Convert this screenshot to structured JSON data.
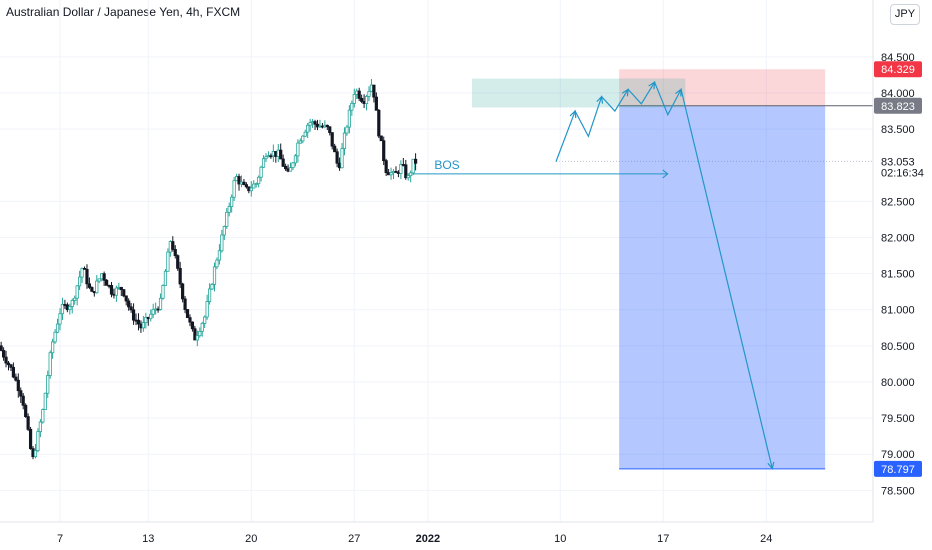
{
  "header": {
    "title": "Australian Dollar / Japanese Yen, 4h, FXCM",
    "currency_button": "JPY"
  },
  "colors": {
    "up": "#26a69a",
    "down": "#131722",
    "target_zone": "#2962ff",
    "stop_zone": "#f23645",
    "supply_zone": "#26a69a",
    "annotation": "#2196c9",
    "entry_label_bg": "#787b86",
    "target_label_bg": "#2962ff",
    "stop_label_bg": "#f23645"
  },
  "chart_data": {
    "type": "candlestick",
    "yrange": [
      78.2,
      84.9
    ],
    "y_ticks": [
      "84.500",
      "84.000",
      "83.500",
      "83.053",
      "82.500",
      "82.000",
      "81.500",
      "81.000",
      "80.500",
      "80.000",
      "79.500",
      "79.000",
      "78.500"
    ],
    "x_ticks": [
      "7",
      "13",
      "20",
      "27",
      "2022",
      "10",
      "17",
      "24"
    ],
    "last_price": "83.053",
    "countdown": "02:16:34",
    "price_labels": {
      "stop": "84.329",
      "entry": "83.823",
      "target": "78.797"
    },
    "annotation_text": "BOS",
    "bos_level": 82.88,
    "supply_zone": {
      "from": "Jan 4",
      "to": "Jan 18",
      "low": 83.8,
      "high": 84.2
    },
    "short_position": {
      "from": "Jan 14",
      "to": "Jan 28",
      "entry": 83.823,
      "stop": 84.329,
      "target": 78.797
    },
    "projected_path": [
      {
        "d": 9.3,
        "p": 83.05
      },
      {
        "d": 10.6,
        "p": 83.75
      },
      {
        "d": 11.5,
        "p": 83.4
      },
      {
        "d": 12.4,
        "p": 83.95
      },
      {
        "d": 13.3,
        "p": 83.75
      },
      {
        "d": 14.2,
        "p": 84.05
      },
      {
        "d": 15.1,
        "p": 83.85
      },
      {
        "d": 16.0,
        "p": 84.15
      },
      {
        "d": 16.9,
        "p": 83.7
      },
      {
        "d": 17.8,
        "p": 84.05
      },
      {
        "d": 24.0,
        "p": 78.8
      }
    ],
    "price_path": [
      {
        "d": 0.0,
        "p": 80.5
      },
      {
        "d": 0.8,
        "p": 80.2
      },
      {
        "d": 1.6,
        "p": 79.8
      },
      {
        "d": 2.3,
        "p": 78.9
      },
      {
        "d": 3.0,
        "p": 79.6
      },
      {
        "d": 3.6,
        "p": 80.5
      },
      {
        "d": 4.2,
        "p": 81.0
      },
      {
        "d": 5.0,
        "p": 81.1
      },
      {
        "d": 5.7,
        "p": 81.6
      },
      {
        "d": 6.3,
        "p": 81.2
      },
      {
        "d": 7.0,
        "p": 81.5
      },
      {
        "d": 7.7,
        "p": 81.25
      },
      {
        "d": 8.4,
        "p": 81.3
      },
      {
        "d": 9.0,
        "p": 80.95
      },
      {
        "d": 9.7,
        "p": 80.75
      },
      {
        "d": 10.4,
        "p": 80.95
      },
      {
        "d": 11.0,
        "p": 81.1
      },
      {
        "d": 11.7,
        "p": 82.0
      },
      {
        "d": 12.2,
        "p": 81.5
      },
      {
        "d": 12.7,
        "p": 81.0
      },
      {
        "d": 13.3,
        "p": 80.6
      },
      {
        "d": 14.0,
        "p": 80.9
      },
      {
        "d": 14.7,
        "p": 81.6
      },
      {
        "d": 15.4,
        "p": 82.2
      },
      {
        "d": 16.1,
        "p": 82.85
      },
      {
        "d": 16.8,
        "p": 82.65
      },
      {
        "d": 17.5,
        "p": 82.75
      },
      {
        "d": 18.2,
        "p": 83.2
      },
      {
        "d": 19.0,
        "p": 83.15
      },
      {
        "d": 19.7,
        "p": 82.85
      },
      {
        "d": 20.4,
        "p": 83.35
      },
      {
        "d": 21.1,
        "p": 83.6
      },
      {
        "d": 21.8,
        "p": 83.55
      },
      {
        "d": 22.4,
        "p": 83.5
      },
      {
        "d": 23.1,
        "p": 82.95
      },
      {
        "d": 23.6,
        "p": 83.5
      },
      {
        "d": 24.2,
        "p": 84.05
      },
      {
        "d": 24.8,
        "p": 83.9
      },
      {
        "d": 25.4,
        "p": 84.15
      },
      {
        "d": 25.8,
        "p": 83.5
      },
      {
        "d": 26.3,
        "p": 82.95
      },
      {
        "d": 26.9,
        "p": 82.85
      },
      {
        "d": 27.4,
        "p": 83.0
      },
      {
        "d": 27.8,
        "p": 82.8
      },
      {
        "d": 28.2,
        "p": 83.05
      }
    ]
  }
}
